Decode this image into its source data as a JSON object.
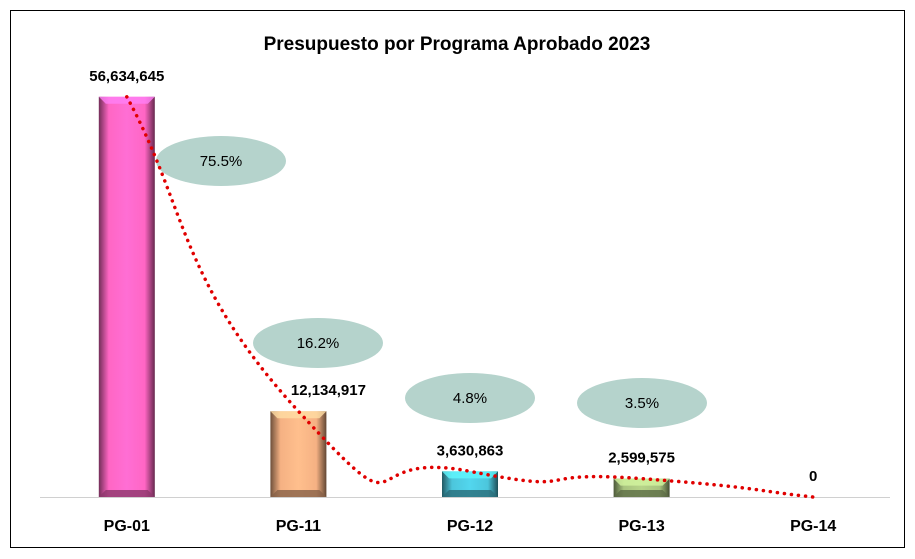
{
  "chart_data": {
    "type": "bar",
    "title": "Presupuesto por Programa Aprobado 2023",
    "categories": [
      "PG-01",
      "PG-11",
      "PG-12",
      "PG-13",
      "PG-14"
    ],
    "values": [
      56634645,
      12134917,
      3630863,
      2599575,
      0
    ],
    "value_labels": [
      "56,634,645",
      "12,134,917",
      "3,630,863",
      "2,599,575",
      "0"
    ],
    "shares": [
      75.5,
      16.2,
      4.8,
      3.5
    ],
    "share_labels": [
      "75.5%",
      "16.2%",
      "4.8%",
      "3.5%"
    ],
    "colors": [
      "#ff66c4",
      "#f5b183",
      "#4cc6dc",
      "#a9c47f",
      "#999999"
    ],
    "share_color": "#b5d3cc",
    "trendline_color": "#e00000",
    "ylim": [
      0,
      60000000
    ]
  }
}
